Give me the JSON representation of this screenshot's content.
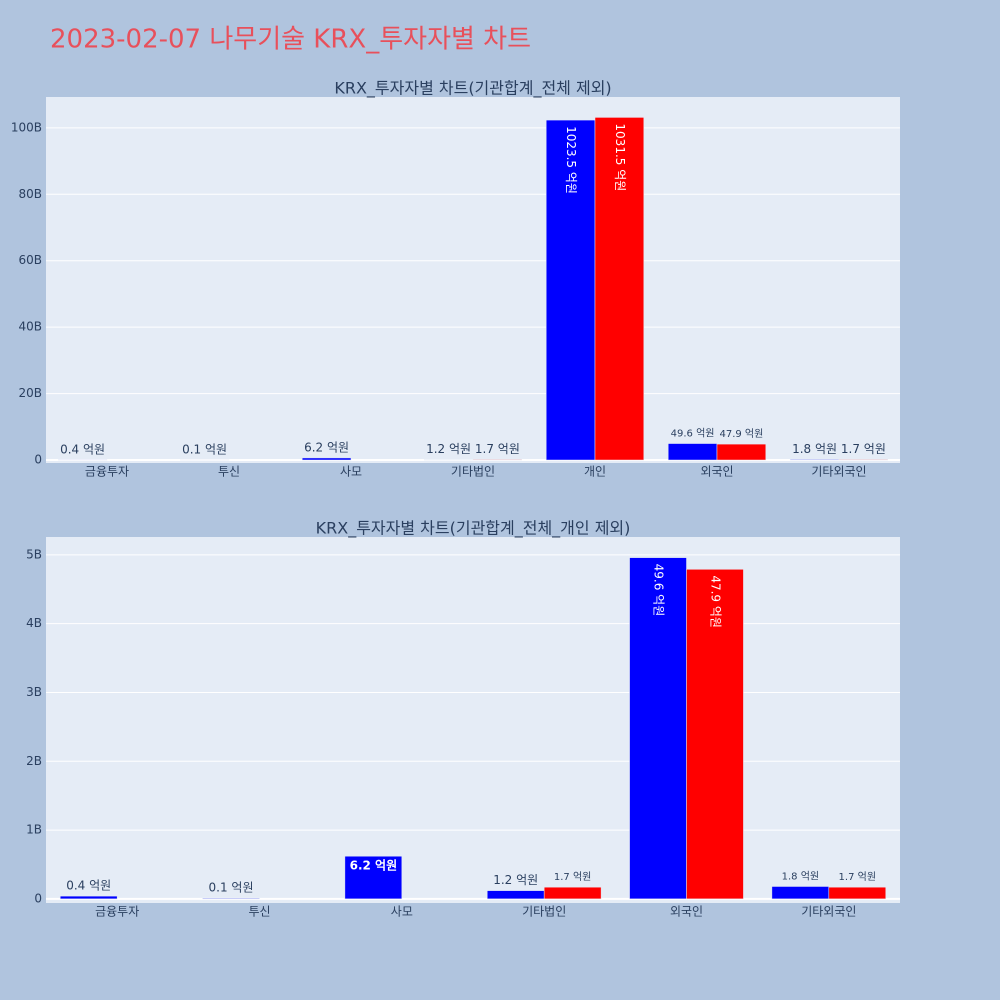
{
  "title": "2023-02-07 나무기술 KRX_투자자별 차트",
  "chart_data": [
    {
      "type": "bar",
      "title": "KRX_투자자별 차트(기관합계_전체 제외)",
      "categories": [
        "금융투자",
        "투신",
        "사모",
        "기타법인",
        "개인",
        "외국인",
        "기타외국인"
      ],
      "series": [
        {
          "color": "#0000ff",
          "values": [
            0.04,
            0.01,
            0.62,
            0.12,
            102.35,
            4.96,
            0.18
          ],
          "value_labels": [
            "0.4 억원",
            "0.1 억원",
            "6.2 억원",
            "1.2 억원",
            "1023.5 억원",
            "49.6 억원",
            "1.8 억원"
          ]
        },
        {
          "color": "#ff0000",
          "values": [
            null,
            null,
            null,
            0.17,
            103.15,
            4.79,
            0.17
          ],
          "value_labels": [
            null,
            null,
            null,
            "1.7 억원",
            "1031.5 억원",
            "47.9 억원",
            "1.7 억원"
          ]
        }
      ],
      "ylim": [
        -0.9,
        109.3
      ],
      "yticks": [
        0,
        {
          "value": 20,
          "label": "20B"
        },
        {
          "value": 40,
          "label": "40B"
        },
        {
          "value": 60,
          "label": "60B"
        },
        {
          "value": 80,
          "label": "80B"
        },
        {
          "value": 100,
          "label": "100B"
        }
      ],
      "grid": true
    },
    {
      "type": "bar",
      "title": "KRX_투자자별 차트(기관합계_전체_개인 제외)",
      "categories": [
        "금융투자",
        "투신",
        "사모",
        "기타법인",
        "외국인",
        "기타외국인"
      ],
      "series": [
        {
          "color": "#0000ff",
          "values": [
            0.04,
            0.01,
            0.62,
            0.12,
            4.96,
            0.18
          ],
          "value_labels": [
            "0.4 억원",
            "0.1 억원",
            "6.2 억원",
            "1.2 억원",
            "49.6 억원",
            "1.8 억원"
          ]
        },
        {
          "color": "#ff0000",
          "values": [
            null,
            null,
            null,
            0.17,
            4.79,
            0.17
          ],
          "value_labels": [
            null,
            null,
            null,
            "1.7 억원",
            "47.9 억원",
            "1.7 억원"
          ]
        }
      ],
      "ylim": [
        -0.06,
        5.26
      ],
      "yticks": [
        0,
        {
          "value": 1,
          "label": "1B"
        },
        {
          "value": 2,
          "label": "2B"
        },
        {
          "value": 3,
          "label": "3B"
        },
        {
          "value": 4,
          "label": "4B"
        },
        {
          "value": 5,
          "label": "5B"
        }
      ],
      "grid": true
    }
  ]
}
